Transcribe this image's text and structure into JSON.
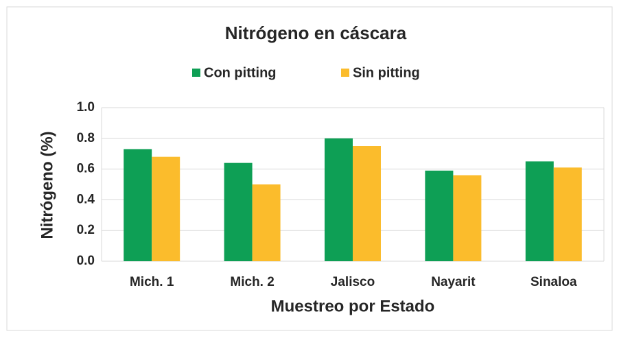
{
  "chart_data": {
    "type": "bar",
    "title": "Nitrógeno en cáscara",
    "x_label": "Muestreo por Estado",
    "y_label": "Nitrógeno (%)",
    "categories": [
      "Mich. 1",
      "Mich. 2",
      "Jalisco",
      "Nayarit",
      "Sinaloa"
    ],
    "series": [
      {
        "name": "Con pitting",
        "color": "#0e9f55",
        "values": [
          0.73,
          0.64,
          0.8,
          0.59,
          0.65
        ]
      },
      {
        "name": "Sin pitting",
        "color": "#fbbc2c",
        "values": [
          0.68,
          0.5,
          0.75,
          0.56,
          0.61
        ]
      }
    ],
    "ylim": [
      0,
      1
    ],
    "yticks": [
      {
        "value": 0,
        "label": "0.0"
      },
      0.2,
      0.4,
      0.6,
      0.8,
      {
        "value": 1,
        "label": "1.0"
      }
    ],
    "grid": true,
    "legend": "top"
  }
}
